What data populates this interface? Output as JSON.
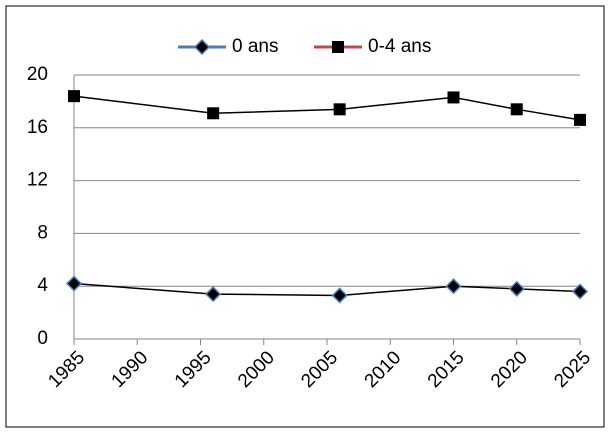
{
  "chart_data": {
    "type": "line",
    "series": [
      {
        "name": "0 ans",
        "color": "#4a7ebb",
        "line_color": "#000000",
        "marker": "diamond",
        "x": [
          1985,
          1996,
          2006,
          2015,
          2020,
          2025
        ],
        "values": [
          4.2,
          3.4,
          3.3,
          4.0,
          3.8,
          3.6
        ]
      },
      {
        "name": "0-4 ans",
        "color": "#be4b48",
        "line_color": "#000000",
        "marker": "square",
        "x": [
          1985,
          1996,
          2006,
          2015,
          2020,
          2025
        ],
        "values": [
          18.4,
          17.1,
          17.4,
          18.3,
          17.4,
          16.6
        ]
      }
    ],
    "xlim": [
      1985,
      2025
    ],
    "xticks": [
      1985,
      1990,
      1995,
      2000,
      2005,
      2010,
      2015,
      2020,
      2025
    ],
    "ylim": [
      0,
      20
    ],
    "yticks": [
      0,
      4,
      8,
      12,
      16,
      20
    ],
    "grid": true,
    "legend": "top"
  }
}
